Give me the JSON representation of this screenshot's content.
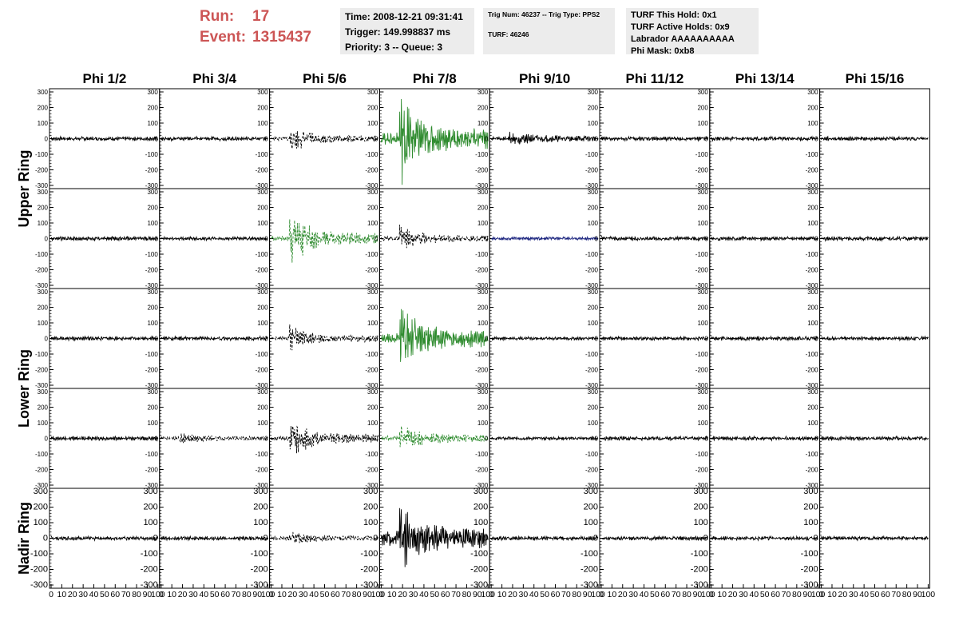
{
  "run_info": {
    "run_label": "Run:",
    "run_value": "17",
    "event_label": "Event:",
    "event_value": "1315437"
  },
  "time_box": {
    "time": "Time: 2008-12-21 09:31:41",
    "trigger": "Trigger: 149.998837 ms",
    "priority": "Priority: 3 -- Queue: 3"
  },
  "trig_box": {
    "trig": "Trig Num: 46237 -- Trig Type: PPS2",
    "turf": "TURF: 46246"
  },
  "turf_box": {
    "hold": "TURF This Hold: 0x1",
    "active": "TURF Active Holds: 0x9",
    "labrador": "Labrador AAAAAAAAAA",
    "phimask": "Phi Mask: 0xb8"
  },
  "colors": {
    "run_text": "#cc5555",
    "info_bg": "#ececec",
    "trace_default": "#000000",
    "trace_trigger": "#2e8b2e",
    "trace_masked": "#1a237e"
  },
  "chart_data": {
    "type": "line",
    "columns": [
      "Phi 1/2",
      "Phi 3/4",
      "Phi 5/6",
      "Phi 7/8",
      "Phi 9/10",
      "Phi 11/12",
      "Phi 13/14",
      "Phi 15/16"
    ],
    "row_groups": [
      {
        "label": "Upper Ring",
        "rows": [
          0,
          1
        ]
      },
      {
        "label": "Lower Ring",
        "rows": [
          2,
          3
        ]
      },
      {
        "label": "Nadir Ring",
        "rows": [
          4
        ]
      }
    ],
    "xlim": [
      0,
      100
    ],
    "ylim": [
      -300,
      300
    ],
    "x_ticks": [
      0,
      10,
      20,
      30,
      40,
      50,
      60,
      70,
      80,
      90,
      100
    ],
    "x_tick_labels": [
      "0",
      "10",
      "20",
      "30",
      "40",
      "50",
      "60",
      "70",
      "80",
      "90",
      "100"
    ],
    "y_ticks": [
      300,
      200,
      100,
      0,
      -100,
      -200,
      -300
    ],
    "y_tick_labels": [
      "300",
      "200",
      "100",
      "0",
      "-100",
      "-200",
      "-300"
    ],
    "panels": [
      [
        {
          "amp": 12,
          "burst": 0,
          "style": "solid",
          "color": "default"
        },
        {
          "amp": 12,
          "burst": 0,
          "style": "solid",
          "color": "default"
        },
        {
          "amp": 12,
          "burst": 90,
          "style": "dashed",
          "color": "default"
        },
        {
          "amp": 35,
          "burst": 300,
          "style": "solid",
          "color": "trigger"
        },
        {
          "amp": 15,
          "burst": 35,
          "style": "solid",
          "color": "default"
        },
        {
          "amp": 12,
          "burst": 0,
          "style": "solid",
          "color": "default"
        },
        {
          "amp": 12,
          "burst": 0,
          "style": "solid",
          "color": "default"
        },
        {
          "amp": 12,
          "burst": 0,
          "style": "solid",
          "color": "default"
        }
      ],
      [
        {
          "amp": 12,
          "burst": 0,
          "style": "solid",
          "color": "default"
        },
        {
          "amp": 10,
          "burst": 0,
          "style": "solid",
          "color": "default"
        },
        {
          "amp": 15,
          "burst": 200,
          "style": "dashed",
          "color": "trigger"
        },
        {
          "amp": 12,
          "burst": 85,
          "style": "dashed",
          "color": "default"
        },
        {
          "amp": 10,
          "burst": 0,
          "style": "solid",
          "color": "masked"
        },
        {
          "amp": 12,
          "burst": 0,
          "style": "solid",
          "color": "default"
        },
        {
          "amp": 12,
          "burst": 0,
          "style": "solid",
          "color": "default"
        },
        {
          "amp": 12,
          "burst": 0,
          "style": "solid",
          "color": "default"
        }
      ],
      [
        {
          "amp": 12,
          "burst": 0,
          "style": "solid",
          "color": "default"
        },
        {
          "amp": 12,
          "burst": 0,
          "style": "solid",
          "color": "default"
        },
        {
          "amp": 12,
          "burst": 80,
          "style": "dashed",
          "color": "default"
        },
        {
          "amp": 30,
          "burst": 220,
          "style": "solid",
          "color": "trigger"
        },
        {
          "amp": 10,
          "burst": 0,
          "style": "solid",
          "color": "default"
        },
        {
          "amp": 12,
          "burst": 0,
          "style": "solid",
          "color": "default"
        },
        {
          "amp": 12,
          "burst": 0,
          "style": "solid",
          "color": "default"
        },
        {
          "amp": 12,
          "burst": 0,
          "style": "solid",
          "color": "default"
        }
      ],
      [
        {
          "amp": 12,
          "burst": 0,
          "style": "solid",
          "color": "default"
        },
        {
          "amp": 12,
          "burst": 25,
          "style": "dashed",
          "color": "default"
        },
        {
          "amp": 15,
          "burst": 130,
          "style": "dashed",
          "color": "default"
        },
        {
          "amp": 15,
          "burst": 90,
          "style": "dashed",
          "color": "trigger"
        },
        {
          "amp": 10,
          "burst": 0,
          "style": "solid",
          "color": "default"
        },
        {
          "amp": 12,
          "burst": 0,
          "style": "solid",
          "color": "default"
        },
        {
          "amp": 12,
          "burst": 0,
          "style": "solid",
          "color": "default"
        },
        {
          "amp": 12,
          "burst": 0,
          "style": "solid",
          "color": "default"
        }
      ],
      [
        {
          "amp": 12,
          "burst": 0,
          "style": "solid",
          "color": "default"
        },
        {
          "amp": 12,
          "burst": 0,
          "style": "solid",
          "color": "default"
        },
        {
          "amp": 12,
          "burst": 35,
          "style": "dashed",
          "color": "default"
        },
        {
          "amp": 45,
          "burst": 200,
          "style": "solid",
          "color": "default"
        },
        {
          "amp": 12,
          "burst": 0,
          "style": "solid",
          "color": "default"
        },
        {
          "amp": 12,
          "burst": 0,
          "style": "solid",
          "color": "default"
        },
        {
          "amp": 12,
          "burst": 0,
          "style": "solid",
          "color": "default"
        },
        {
          "amp": 12,
          "burst": 0,
          "style": "solid",
          "color": "default"
        }
      ]
    ]
  }
}
